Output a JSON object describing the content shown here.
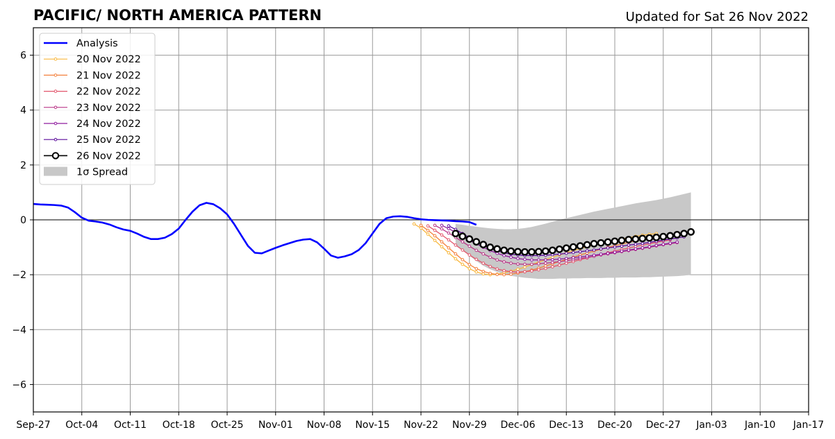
{
  "chart_data": {
    "type": "line",
    "title": "PACIFIC/ NORTH AMERICA PATTERN",
    "subtitle": "Updated for Sat 26 Nov 2022",
    "xlabel": "",
    "ylabel": "",
    "x_ticks": [
      "Sep-27",
      "Oct-04",
      "Oct-11",
      "Oct-18",
      "Oct-25",
      "Nov-01",
      "Nov-08",
      "Nov-15",
      "Nov-22",
      "Nov-29",
      "Dec-06",
      "Dec-13",
      "Dec-20",
      "Dec-27",
      "Jan-03",
      "Jan-10",
      "Jan-17"
    ],
    "y_ticks": [
      "6",
      "4",
      "2",
      "0",
      "−2",
      "−4",
      "−6"
    ],
    "y_tick_values": [
      6,
      4,
      2,
      0,
      -2,
      -4,
      -6
    ],
    "xlim_days": [
      0,
      112
    ],
    "ylim": [
      -7,
      7
    ],
    "grid": true,
    "legend_position": "upper-left",
    "analysis": {
      "name": "Analysis",
      "color": "#0000ff",
      "start_date": "Sep-27",
      "values": [
        0.58,
        0.56,
        0.55,
        0.54,
        0.52,
        0.45,
        0.28,
        0.08,
        -0.03,
        -0.06,
        -0.1,
        -0.17,
        -0.27,
        -0.35,
        -0.4,
        -0.5,
        -0.62,
        -0.7,
        -0.7,
        -0.65,
        -0.52,
        -0.32,
        0.0,
        0.3,
        0.53,
        0.62,
        0.57,
        0.42,
        0.2,
        -0.15,
        -0.55,
        -0.95,
        -1.2,
        -1.22,
        -1.12,
        -1.02,
        -0.93,
        -0.85,
        -0.77,
        -0.72,
        -0.7,
        -0.82,
        -1.05,
        -1.3,
        -1.38,
        -1.33,
        -1.25,
        -1.1,
        -0.85,
        -0.5,
        -0.15,
        0.06,
        0.12,
        0.13,
        0.11,
        0.06,
        0.02,
        0.0,
        -0.01,
        -0.02,
        -0.03,
        -0.05,
        -0.06,
        -0.08,
        -0.18
      ]
    },
    "forecasts": [
      {
        "name": "20 Nov 2022",
        "color": "#f8b63b",
        "start_day": 55,
        "end_day": 90,
        "values": [
          -0.15,
          -0.3,
          -0.52,
          -0.75,
          -0.98,
          -1.2,
          -1.42,
          -1.62,
          -1.78,
          -1.9,
          -1.97,
          -2.0,
          -1.98,
          -1.93,
          -1.87,
          -1.8,
          -1.72,
          -1.63,
          -1.54,
          -1.45,
          -1.36,
          -1.28,
          -1.2,
          -1.12,
          -1.05,
          -0.98,
          -0.92,
          -0.86,
          -0.8,
          -0.75,
          -0.7,
          -0.65,
          -0.6,
          -0.56,
          -0.53,
          -0.5
        ]
      },
      {
        "name": "21 Nov 2022",
        "color": "#f37f3b",
        "start_day": 56,
        "end_day": 91,
        "values": [
          -0.2,
          -0.38,
          -0.58,
          -0.8,
          -1.02,
          -1.24,
          -1.45,
          -1.63,
          -1.78,
          -1.88,
          -1.95,
          -1.99,
          -2.0,
          -1.98,
          -1.94,
          -1.89,
          -1.83,
          -1.76,
          -1.68,
          -1.6,
          -1.52,
          -1.44,
          -1.36,
          -1.28,
          -1.21,
          -1.14,
          -1.07,
          -1.0,
          -0.94,
          -0.88,
          -0.82,
          -0.76,
          -0.71,
          -0.66,
          -0.61,
          -0.57
        ]
      },
      {
        "name": "22 Nov 2022",
        "color": "#e2546a",
        "start_day": 57,
        "end_day": 92,
        "values": [
          -0.22,
          -0.38,
          -0.55,
          -0.73,
          -0.92,
          -1.1,
          -1.28,
          -1.44,
          -1.58,
          -1.7,
          -1.79,
          -1.85,
          -1.89,
          -1.9,
          -1.89,
          -1.86,
          -1.82,
          -1.77,
          -1.71,
          -1.65,
          -1.58,
          -1.52,
          -1.45,
          -1.39,
          -1.32,
          -1.26,
          -1.2,
          -1.14,
          -1.08,
          -1.03,
          -0.97,
          -0.92,
          -0.87,
          -0.82,
          -0.77,
          -0.73
        ]
      },
      {
        "name": "23 Nov 2022",
        "color": "#b93386",
        "start_day": 58,
        "end_day": 93,
        "values": [
          -0.2,
          -0.33,
          -0.48,
          -0.64,
          -0.8,
          -0.96,
          -1.11,
          -1.24,
          -1.36,
          -1.46,
          -1.53,
          -1.58,
          -1.61,
          -1.62,
          -1.62,
          -1.6,
          -1.58,
          -1.55,
          -1.52,
          -1.49,
          -1.45,
          -1.41,
          -1.37,
          -1.33,
          -1.28,
          -1.24,
          -1.2,
          -1.16,
          -1.12,
          -1.08,
          -1.04,
          -1.0,
          -0.95,
          -0.91,
          -0.87,
          -0.83
        ]
      },
      {
        "name": "24 Nov 2022",
        "color": "#8e1b9e",
        "start_day": 59,
        "end_day": 93,
        "values": [
          -0.2,
          -0.32,
          -0.45,
          -0.6,
          -0.74,
          -0.88,
          -1.0,
          -1.12,
          -1.22,
          -1.3,
          -1.36,
          -1.41,
          -1.44,
          -1.46,
          -1.46,
          -1.46,
          -1.45,
          -1.43,
          -1.41,
          -1.38,
          -1.35,
          -1.32,
          -1.29,
          -1.25,
          -1.22,
          -1.18,
          -1.14,
          -1.1,
          -1.06,
          -1.02,
          -0.98,
          -0.93,
          -0.89,
          -0.85,
          -0.81
        ]
      },
      {
        "name": "25 Nov 2022",
        "color": "#5a0a9a",
        "start_day": 60,
        "end_day": 94,
        "values": [
          -0.22,
          -0.35,
          -0.5,
          -0.65,
          -0.8,
          -0.93,
          -1.04,
          -1.13,
          -1.2,
          -1.25,
          -1.28,
          -1.3,
          -1.3,
          -1.3,
          -1.29,
          -1.27,
          -1.25,
          -1.22,
          -1.19,
          -1.16,
          -1.13,
          -1.1,
          -1.06,
          -1.02,
          -0.99,
          -0.96,
          -0.92,
          -0.89,
          -0.86,
          -0.82,
          -0.78,
          -0.74,
          -0.7,
          -0.66,
          -0.62
        ]
      },
      {
        "name": "26 Nov 2022",
        "color": "#000000",
        "start_day": 61,
        "end_day": 95,
        "values": [
          -0.5,
          -0.6,
          -0.7,
          -0.8,
          -0.9,
          -1.0,
          -1.06,
          -1.11,
          -1.14,
          -1.16,
          -1.17,
          -1.17,
          -1.16,
          -1.14,
          -1.11,
          -1.07,
          -1.03,
          -0.99,
          -0.95,
          -0.91,
          -0.87,
          -0.84,
          -0.81,
          -0.78,
          -0.75,
          -0.72,
          -0.7,
          -0.68,
          -0.66,
          -0.64,
          -0.61,
          -0.58,
          -0.54,
          -0.5,
          -0.44
        ]
      }
    ],
    "spread": {
      "name": "1σ Spread",
      "color": "#c8c8c8",
      "start_day": 61,
      "end_day": 95,
      "upper": [
        -0.15,
        -0.18,
        -0.22,
        -0.25,
        -0.28,
        -0.31,
        -0.33,
        -0.34,
        -0.34,
        -0.33,
        -0.3,
        -0.26,
        -0.2,
        -0.14,
        -0.07,
        0.0,
        0.06,
        0.12,
        0.18,
        0.24,
        0.3,
        0.35,
        0.4,
        0.45,
        0.5,
        0.55,
        0.6,
        0.64,
        0.68,
        0.72,
        0.77,
        0.82,
        0.88,
        0.94,
        1.0
      ],
      "lower": [
        -0.9,
        -1.1,
        -1.3,
        -1.5,
        -1.67,
        -1.8,
        -1.9,
        -1.98,
        -2.04,
        -2.08,
        -2.11,
        -2.13,
        -2.15,
        -2.15,
        -2.15,
        -2.14,
        -2.14,
        -2.13,
        -2.13,
        -2.12,
        -2.12,
        -2.12,
        -2.11,
        -2.11,
        -2.1,
        -2.1,
        -2.1,
        -2.09,
        -2.09,
        -2.08,
        -2.07,
        -2.06,
        -2.05,
        -2.03,
        -2.0
      ]
    }
  }
}
